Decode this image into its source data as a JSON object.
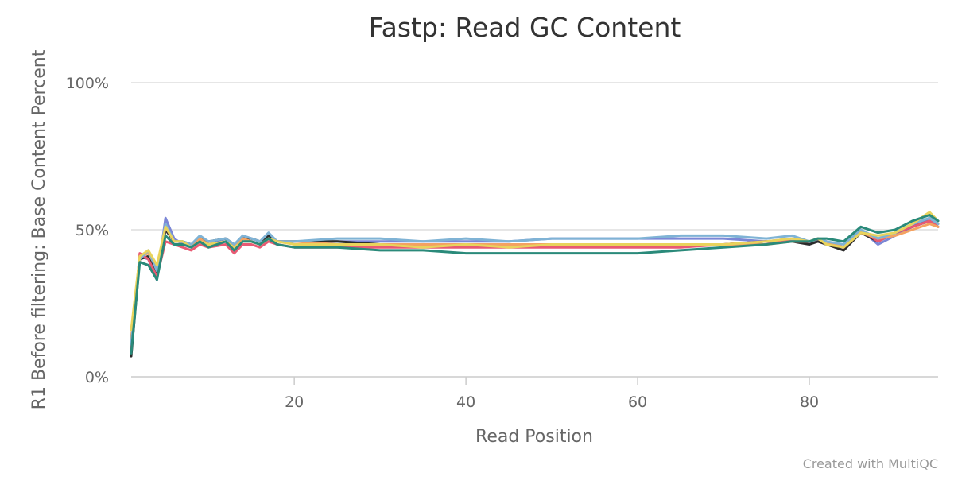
{
  "chart_data": {
    "type": "line",
    "title": "Fastp: Read GC Content",
    "xlabel": "Read Position",
    "ylabel": "R1 Before filtering: Base Content Percent",
    "xlim": [
      1,
      95
    ],
    "ylim": [
      0,
      100
    ],
    "xticks": [
      20,
      40,
      60,
      80
    ],
    "yticks": [
      0,
      50,
      100
    ],
    "ytick_labels": [
      "0%",
      "50%",
      "100%"
    ],
    "grid": true,
    "legend": "none",
    "series": [
      {
        "color": "#7b86d6",
        "x": [
          1,
          2,
          3,
          4,
          5,
          6,
          7,
          8,
          9,
          10,
          12,
          13,
          14,
          15,
          16,
          17,
          18,
          20,
          25,
          30,
          35,
          40,
          45,
          50,
          55,
          60,
          65,
          70,
          75,
          78,
          80,
          81,
          82,
          84,
          86,
          88,
          90,
          92,
          94,
          95
        ],
        "y": [
          12,
          41,
          40,
          33,
          54,
          47,
          45,
          44,
          47,
          45,
          47,
          44,
          48,
          47,
          46,
          48,
          46,
          46,
          46,
          46,
          46,
          46,
          46,
          47,
          47,
          47,
          47,
          47,
          46,
          47,
          45,
          47,
          46,
          44,
          50,
          45,
          48,
          51,
          54,
          52
        ]
      },
      {
        "color": "#2b2b2b",
        "x": [
          1,
          2,
          3,
          4,
          5,
          6,
          7,
          8,
          9,
          10,
          12,
          13,
          14,
          15,
          16,
          17,
          18,
          20,
          25,
          30,
          35,
          40,
          45,
          50,
          55,
          60,
          65,
          70,
          75,
          78,
          80,
          81,
          82,
          84,
          86,
          88,
          90,
          92,
          94,
          95
        ],
        "y": [
          7,
          40,
          41,
          35,
          50,
          46,
          46,
          45,
          47,
          46,
          47,
          45,
          47,
          47,
          46,
          48,
          46,
          46,
          46,
          45,
          45,
          45,
          45,
          45,
          45,
          45,
          45,
          45,
          46,
          46,
          45,
          46,
          45,
          43,
          49,
          46,
          49,
          51,
          53,
          51
        ]
      },
      {
        "color": "#e85a73",
        "x": [
          1,
          2,
          3,
          4,
          5,
          6,
          7,
          8,
          9,
          10,
          12,
          13,
          14,
          15,
          16,
          17,
          18,
          20,
          25,
          30,
          35,
          40,
          45,
          50,
          55,
          60,
          65,
          70,
          75,
          78,
          80,
          81,
          82,
          84,
          86,
          88,
          90,
          92,
          94,
          95
        ],
        "y": [
          9,
          42,
          40,
          34,
          46,
          45,
          44,
          43,
          45,
          44,
          45,
          42,
          45,
          45,
          44,
          46,
          45,
          44,
          44,
          44,
          44,
          44,
          44,
          44,
          44,
          44,
          44,
          45,
          46,
          46,
          46,
          47,
          46,
          44,
          50,
          46,
          49,
          51,
          53,
          51
        ]
      },
      {
        "color": "#f4a261",
        "x": [
          1,
          2,
          3,
          4,
          5,
          6,
          7,
          8,
          9,
          10,
          12,
          13,
          14,
          15,
          16,
          17,
          18,
          20,
          25,
          30,
          35,
          40,
          45,
          50,
          55,
          60,
          65,
          70,
          75,
          78,
          80,
          81,
          82,
          84,
          86,
          88,
          90,
          92,
          94,
          95
        ],
        "y": [
          13,
          41,
          42,
          37,
          51,
          46,
          46,
          44,
          47,
          45,
          46,
          44,
          47,
          46,
          45,
          47,
          46,
          46,
          45,
          45,
          45,
          45,
          45,
          45,
          45,
          45,
          45,
          45,
          45,
          46,
          46,
          47,
          46,
          44,
          49,
          47,
          48,
          50,
          52,
          51
        ]
      },
      {
        "color": "#7fb3d5",
        "x": [
          1,
          2,
          3,
          4,
          5,
          6,
          7,
          8,
          9,
          10,
          12,
          13,
          14,
          15,
          16,
          17,
          18,
          20,
          25,
          30,
          35,
          40,
          45,
          50,
          55,
          60,
          65,
          70,
          75,
          78,
          80,
          81,
          82,
          84,
          86,
          88,
          90,
          92,
          94,
          95
        ],
        "y": [
          11,
          40,
          43,
          36,
          52,
          46,
          46,
          45,
          48,
          46,
          47,
          45,
          48,
          47,
          46,
          49,
          46,
          46,
          47,
          47,
          46,
          47,
          46,
          47,
          47,
          47,
          48,
          48,
          47,
          48,
          46,
          47,
          46,
          45,
          50,
          47,
          49,
          52,
          54,
          52
        ]
      },
      {
        "color": "#e9d35c",
        "x": [
          1,
          2,
          3,
          4,
          5,
          6,
          7,
          8,
          9,
          10,
          12,
          13,
          14,
          15,
          16,
          17,
          18,
          20,
          25,
          30,
          35,
          40,
          45,
          50,
          55,
          60,
          65,
          70,
          75,
          78,
          80,
          81,
          82,
          84,
          86,
          88,
          90,
          92,
          94,
          95
        ],
        "y": [
          16,
          41,
          43,
          38,
          51,
          46,
          46,
          44,
          46,
          45,
          46,
          44,
          46,
          46,
          45,
          47,
          46,
          45,
          45,
          45,
          44,
          45,
          44,
          45,
          45,
          45,
          45,
          45,
          46,
          47,
          46,
          47,
          45,
          44,
          49,
          48,
          49,
          52,
          56,
          53
        ]
      },
      {
        "color": "#2a8a7a",
        "x": [
          1,
          2,
          3,
          4,
          5,
          6,
          7,
          8,
          9,
          10,
          12,
          13,
          14,
          15,
          16,
          17,
          18,
          20,
          25,
          30,
          35,
          40,
          45,
          50,
          55,
          60,
          65,
          70,
          75,
          78,
          80,
          81,
          82,
          84,
          86,
          88,
          90,
          92,
          94,
          95
        ],
        "y": [
          8,
          39,
          38,
          33,
          48,
          45,
          45,
          44,
          46,
          44,
          46,
          43,
          46,
          46,
          45,
          47,
          45,
          44,
          44,
          43,
          43,
          42,
          42,
          42,
          42,
          42,
          43,
          44,
          45,
          46,
          46,
          47,
          47,
          46,
          51,
          49,
          50,
          53,
          55,
          53
        ]
      }
    ]
  },
  "credit": "Created with MultiQC"
}
